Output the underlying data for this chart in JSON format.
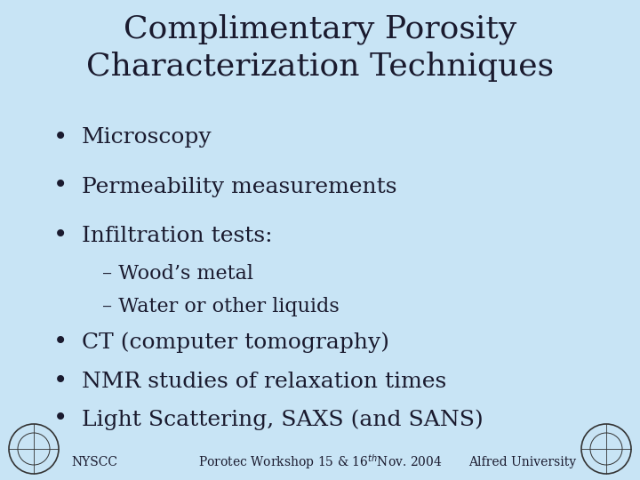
{
  "title_line1": "Complimentary Porosity",
  "title_line2": "Characterization Techniques",
  "background_color": "#c8e4f5",
  "text_color": "#1a1a2e",
  "title_fontsize": 26,
  "bullet_fontsize": 18,
  "sub_bullet_fontsize": 16,
  "footer_fontsize": 10,
  "bullet_items": [
    "Microscopy",
    "Permeability measurements",
    "Infiltration tests:"
  ],
  "sub_items": [
    "– Wood’s metal",
    "– Water or other liquids"
  ],
  "bullet_items2": [
    "CT (computer tomography)",
    "NMR studies of relaxation times",
    "Light Scattering, SAXS (and SANS)"
  ],
  "footer_left": "NYSCC",
  "footer_center": "Porotec Workshop 15 & 16$^{th}$Nov. 2004",
  "footer_right": "Alfred University",
  "font_family": "serif"
}
